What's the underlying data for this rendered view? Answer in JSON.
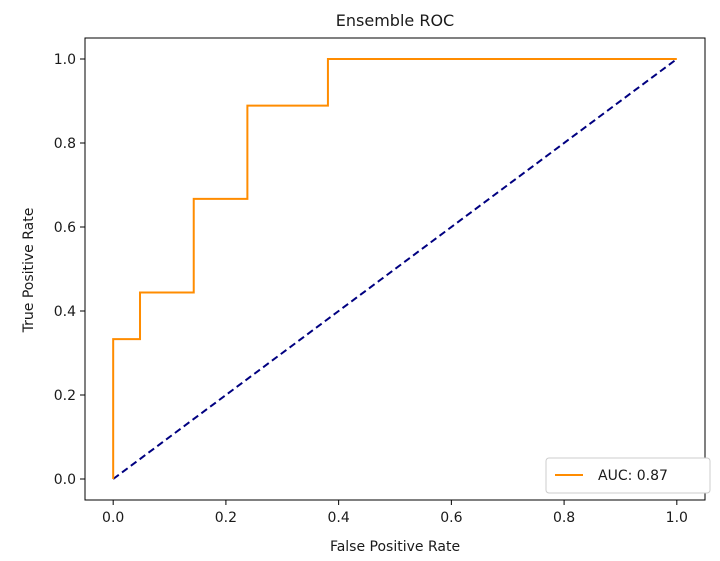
{
  "chart_data": {
    "type": "line",
    "title": "Ensemble ROC",
    "xlabel": "False Positive Rate",
    "ylabel": "True Positive Rate",
    "xlim": [
      -0.05,
      1.05
    ],
    "ylim": [
      -0.05,
      1.05
    ],
    "xticks": [
      0.0,
      0.2,
      0.4,
      0.6,
      0.8,
      1.0
    ],
    "xtick_labels": [
      "0.0",
      "0.2",
      "0.4",
      "0.6",
      "0.8",
      "1.0"
    ],
    "yticks": [
      0.0,
      0.2,
      0.4,
      0.6,
      0.8,
      1.0
    ],
    "ytick_labels": [
      "0.0",
      "0.2",
      "0.4",
      "0.6",
      "0.8",
      "1.0"
    ],
    "grid": false,
    "legend_position": "lower-right",
    "series": [
      {
        "name": "AUC: 0.87",
        "color": "#ff8c00",
        "style": "solid",
        "x": [
          0.0,
          0.0,
          0.0476,
          0.0476,
          0.1429,
          0.1429,
          0.2381,
          0.2381,
          0.381,
          0.381,
          1.0
        ],
        "y": [
          0.0,
          0.333,
          0.333,
          0.444,
          0.444,
          0.667,
          0.667,
          0.889,
          0.889,
          1.0,
          1.0
        ]
      },
      {
        "name": "",
        "color": "#000080",
        "style": "dashed",
        "x": [
          0.0,
          1.0
        ],
        "y": [
          0.0,
          1.0
        ]
      }
    ],
    "legend": [
      "AUC: 0.87"
    ]
  }
}
